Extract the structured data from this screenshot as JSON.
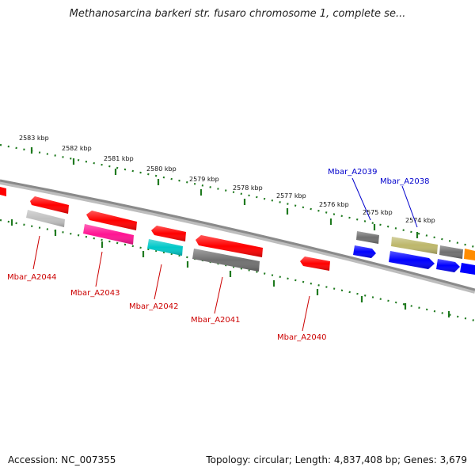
{
  "title": "Methanosarcina barkeri str. fusaro chromosome 1, complete se...",
  "footer": {
    "accession": "Accession: NC_007355",
    "topology": "Topology: circular; Length: 4,837,408 bp; Genes: 3,679"
  },
  "colors": {
    "backbone": "#8a8a8a",
    "tick": "#1f7a1f",
    "forward_label": "#0000cc",
    "reverse_label": "#cc0000"
  },
  "ticks": [
    {
      "label": "2583 kbp"
    },
    {
      "label": "2582 kbp"
    },
    {
      "label": "2581 kbp"
    },
    {
      "label": "2580 kbp"
    },
    {
      "label": "2579 kbp"
    },
    {
      "label": "2578 kbp"
    },
    {
      "label": "2577 kbp"
    },
    {
      "label": "2576 kbp"
    },
    {
      "label": "2575 kbp"
    },
    {
      "label": "2574 kbp"
    }
  ],
  "gene_labels": [
    {
      "text": "Mbar_A2039",
      "strand": "forward"
    },
    {
      "text": "Mbar_A2038",
      "strand": "forward"
    },
    {
      "text": "Mbar_A2044",
      "strand": "reverse"
    },
    {
      "text": "Mbar_A2043",
      "strand": "reverse"
    },
    {
      "text": "Mbar_A2042",
      "strand": "reverse"
    },
    {
      "text": "Mbar_A2041",
      "strand": "reverse"
    },
    {
      "text": "Mbar_A2040",
      "strand": "reverse"
    }
  ],
  "features": [
    {
      "color": "#ff0000"
    },
    {
      "color": "#ff0000"
    },
    {
      "color": "#c0c0c0"
    },
    {
      "color": "#ff0000"
    },
    {
      "color": "#ff1493"
    },
    {
      "color": "#ff0000"
    },
    {
      "color": "#00c8c8"
    },
    {
      "color": "#ff0000"
    },
    {
      "color": "#707070"
    },
    {
      "color": "#ff0000"
    },
    {
      "color": "#707070"
    },
    {
      "color": "#0000ff"
    },
    {
      "color": "#bdb76b"
    },
    {
      "color": "#0000ff"
    },
    {
      "color": "#707070"
    },
    {
      "color": "#0000ff"
    },
    {
      "color": "#ff8c00"
    },
    {
      "color": "#0000ff"
    }
  ]
}
